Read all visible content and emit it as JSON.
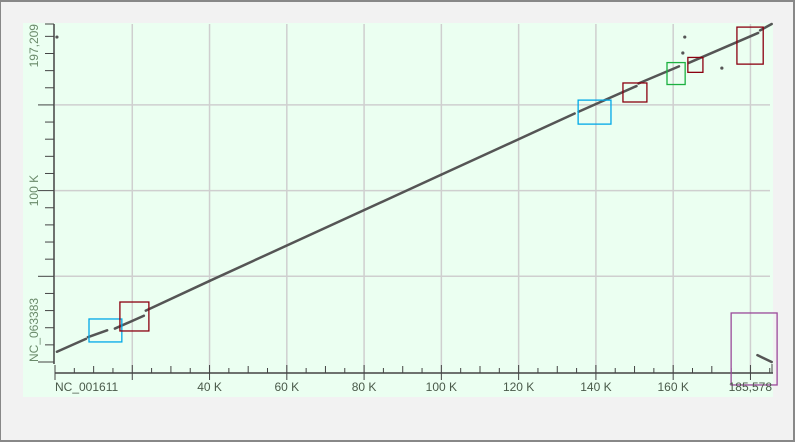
{
  "chart_data": {
    "type": "scatter",
    "subtype": "dot-plot",
    "xlabel": "NC_001611",
    "ylabel": "NC_063383",
    "xlim": [
      0,
      185578
    ],
    "ylim": [
      0,
      197209
    ],
    "x_tick_labels": [
      "40 K",
      "60 K",
      "80 K",
      "100 K",
      "120 K",
      "140 K",
      "160 K"
    ],
    "x_tick_values": [
      40000,
      60000,
      80000,
      100000,
      120000,
      140000,
      160000
    ],
    "x_end_label": "185,578",
    "y_tick_labels": [
      "100 K"
    ],
    "y_tick_values": [
      100000
    ],
    "y_end_label": "197,209",
    "x_grid": [
      20000,
      40000,
      60000,
      80000,
      100000,
      120000,
      140000,
      160000,
      180000
    ],
    "y_grid": [
      50000,
      100000,
      150000
    ],
    "grid": true,
    "background_color": "#ebfff1",
    "line_color": "#555555",
    "segments": [
      {
        "x": [
          500,
          8000
        ],
        "y": [
          6000,
          13500
        ]
      },
      {
        "x": [
          8500,
          13500
        ],
        "y": [
          14500,
          18500
        ]
      },
      {
        "x": [
          15500,
          23000
        ],
        "y": [
          19500,
          27000
        ]
      },
      {
        "x": [
          23500,
          40000
        ],
        "y": [
          30000,
          47300
        ]
      },
      {
        "x": [
          40000,
          100000
        ],
        "y": [
          47300,
          109300
        ]
      },
      {
        "x": [
          100000,
          134500
        ],
        "y": [
          109300,
          145000
        ]
      },
      {
        "x": [
          135500,
          150500
        ],
        "y": [
          146000,
          161000
        ]
      },
      {
        "x": [
          151000,
          161500
        ],
        "y": [
          162500,
          172500
        ]
      },
      {
        "x": [
          164000,
          182000
        ],
        "y": [
          174500,
          192000
        ]
      },
      {
        "x": [
          182500,
          185500
        ],
        "y": [
          193500,
          197200
        ]
      },
      {
        "x": [
          181800,
          185500
        ],
        "y": [
          4000,
          0
        ]
      }
    ],
    "points": [
      {
        "x": 500,
        "y": 189600
      },
      {
        "x": 163000,
        "y": 189600
      },
      {
        "x": 162500,
        "y": 180300
      },
      {
        "x": 172600,
        "y": 171500
      }
    ],
    "highlight_boxes": [
      {
        "color": "#00a8e8",
        "x": [
          8800,
          17300
        ],
        "y": [
          11700,
          25100
        ]
      },
      {
        "color": "#8b0010",
        "x": [
          16800,
          24300
        ],
        "y": [
          18100,
          35000
        ]
      },
      {
        "color": "#00a8e8",
        "x": [
          135400,
          143900
        ],
        "y": [
          138800,
          152800
        ]
      },
      {
        "color": "#8b0010",
        "x": [
          147000,
          153200
        ],
        "y": [
          151700,
          162800
        ]
      },
      {
        "color": "#1bb040",
        "x": [
          158400,
          163100
        ],
        "y": [
          161900,
          174700
        ]
      },
      {
        "color": "#8b0010",
        "x": [
          163800,
          167700
        ],
        "y": [
          169000,
          177700
        ]
      },
      {
        "color": "#8b0010",
        "x": [
          176500,
          183300
        ],
        "y": [
          173800,
          195400
        ]
      },
      {
        "color": "#9a4a9a",
        "x": [
          175000,
          186900
        ],
        "y": [
          -13400,
          28600
        ]
      }
    ]
  }
}
